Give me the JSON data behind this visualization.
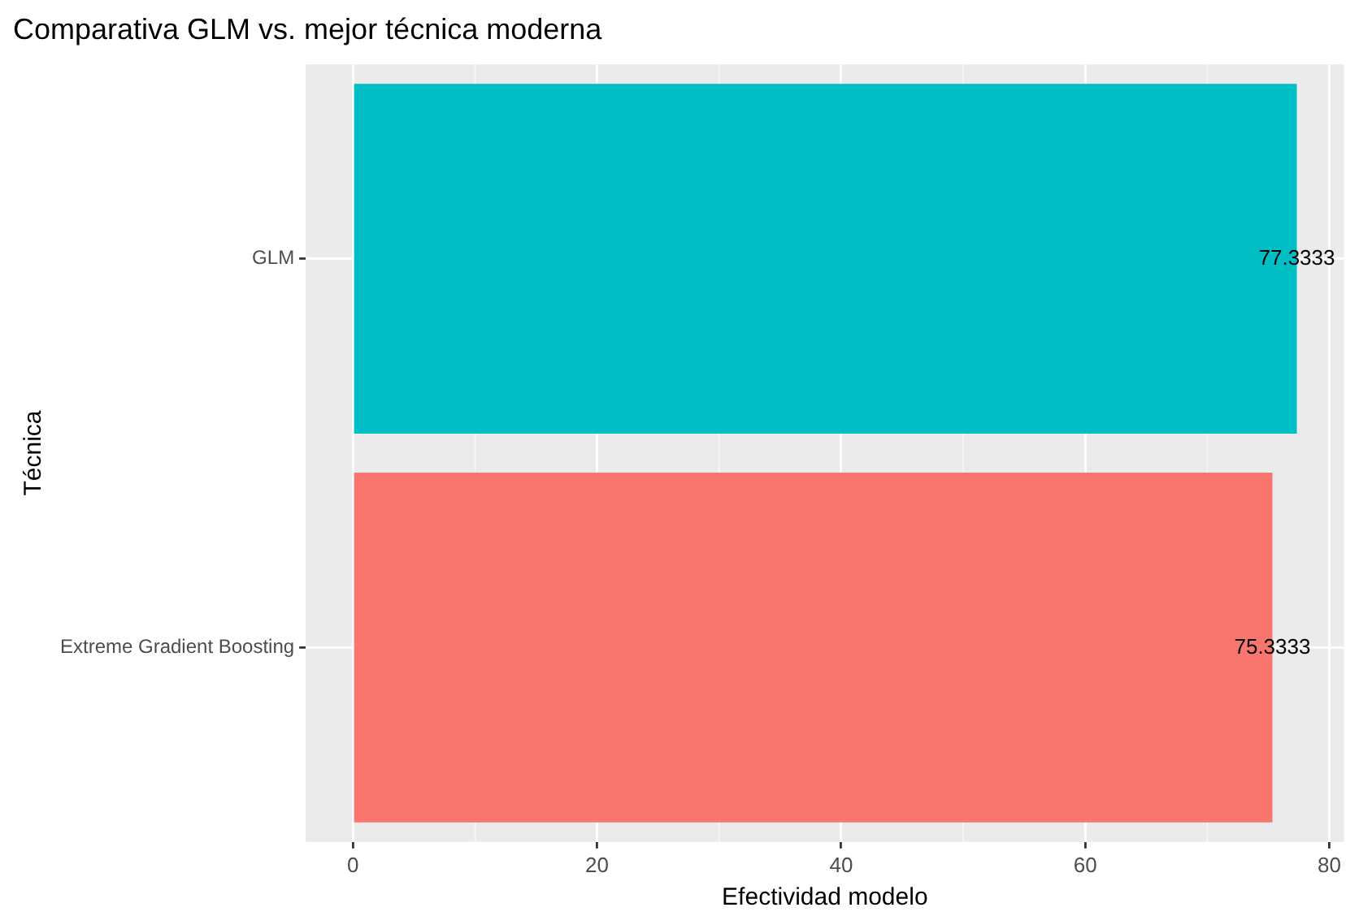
{
  "chart_data": {
    "type": "bar",
    "orientation": "horizontal",
    "title": "Comparativa GLM vs. mejor técnica moderna",
    "xlabel": "Efectividad modelo",
    "ylabel": "Técnica",
    "categories": [
      "GLM",
      "Extreme Gradient Boosting"
    ],
    "values": [
      77.3333,
      75.3333
    ],
    "colors": [
      "#00bfc4",
      "#f8766d"
    ],
    "value_labels": [
      "77.3333",
      "75.3333"
    ],
    "xlim": [
      -3.87,
      81.2
    ],
    "xticks": [
      0,
      20,
      40,
      60,
      80
    ],
    "grid": true,
    "legend": false
  }
}
